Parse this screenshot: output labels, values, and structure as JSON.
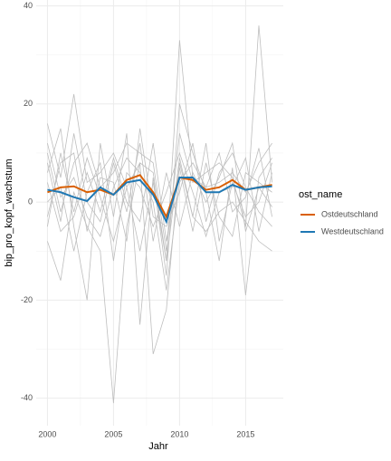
{
  "chart_data": {
    "type": "line",
    "x_label": "Jahr",
    "y_label": "bip_pro_kopf_wachstum",
    "legend_title": "ost_name",
    "x": [
      2000,
      2001,
      2002,
      2003,
      2004,
      2005,
      2006,
      2007,
      2008,
      2009,
      2010,
      2011,
      2012,
      2013,
      2014,
      2015,
      2016,
      2017
    ],
    "xlim": [
      1999.15,
      2017.85
    ],
    "xticks": [
      2000,
      2005,
      2010,
      2015
    ],
    "xticks_minor": [
      2002.5,
      2007.5,
      2012.5
    ],
    "ylim": [
      -45.6,
      41.2
    ],
    "yticks": [
      -40,
      -20,
      0,
      20,
      40
    ],
    "yticks_minor": [
      -30,
      -10,
      10,
      30
    ],
    "grid": true,
    "legend": "right",
    "background_series": [
      {
        "color": "#bebebe",
        "values": [
          16,
          5,
          22,
          4,
          6,
          10,
          3,
          8,
          6,
          -12,
          33,
          5,
          3,
          4,
          6,
          2,
          8,
          12
        ]
      },
      {
        "color": "#bebebe",
        "values": [
          -8,
          -16,
          2,
          -5,
          -10,
          -41,
          -5,
          8,
          -31,
          -22,
          8,
          -3,
          -6,
          -2,
          0,
          -4,
          -8,
          -10
        ]
      },
      {
        "color": "#bebebe",
        "values": [
          10,
          -2,
          8,
          12,
          3,
          6,
          12,
          10,
          8,
          -10,
          14,
          4,
          6,
          8,
          5,
          -5,
          36,
          4
        ]
      },
      {
        "color": "#bebebe",
        "values": [
          6,
          15,
          -5,
          -20,
          12,
          -3,
          14,
          -25,
          5,
          -15,
          20,
          10,
          2,
          -12,
          7,
          -19,
          5,
          9
        ]
      },
      {
        "color": "#bebebe",
        "values": [
          -3,
          8,
          10,
          -6,
          5,
          4,
          -8,
          15,
          -3,
          -5,
          2,
          12,
          -4,
          6,
          10,
          3,
          -2,
          -5
        ]
      },
      {
        "color": "#bebebe",
        "values": [
          4,
          -6,
          -3,
          6,
          -2,
          9,
          0,
          -4,
          12,
          -8,
          7,
          -6,
          8,
          -3,
          -7,
          6,
          4,
          2
        ]
      },
      {
        "color": "#bebebe",
        "values": [
          0,
          3,
          -10,
          2,
          8,
          -12,
          6,
          3,
          -5,
          2,
          10,
          2,
          -7,
          2,
          3,
          9,
          -6,
          6
        ]
      },
      {
        "color": "#bebebe",
        "values": [
          12,
          1,
          5,
          -3,
          -7,
          3,
          9,
          6,
          0,
          -18,
          4,
          8,
          3,
          10,
          -2,
          1,
          11,
          -3
        ]
      },
      {
        "color": "#bebebe",
        "values": [
          -5,
          10,
          -2,
          9,
          1,
          -8,
          3,
          -10,
          4,
          -12,
          9,
          -3,
          12,
          -8,
          4,
          -3,
          0,
          8
        ]
      },
      {
        "color": "#bebebe",
        "values": [
          8,
          -4,
          14,
          0,
          -4,
          8,
          -2,
          12,
          -8,
          6,
          -5,
          6,
          0,
          5,
          12,
          -6,
          3,
          -1
        ]
      }
    ],
    "series": [
      {
        "name": "Ostdeutschland",
        "color": "#d95f02",
        "values": [
          2.0,
          3.0,
          3.2,
          2.0,
          2.5,
          1.5,
          4.5,
          5.5,
          2.0,
          -3.0,
          5.0,
          4.5,
          2.5,
          3.0,
          4.5,
          2.5,
          3.0,
          3.5
        ]
      },
      {
        "name": "Westdeutschland",
        "color": "#1f78b4",
        "values": [
          2.5,
          2.0,
          1.0,
          0.2,
          3.0,
          1.5,
          4.0,
          4.5,
          1.5,
          -4.0,
          5.0,
          5.0,
          2.0,
          2.0,
          3.5,
          2.5,
          3.0,
          3.2
        ]
      }
    ]
  }
}
